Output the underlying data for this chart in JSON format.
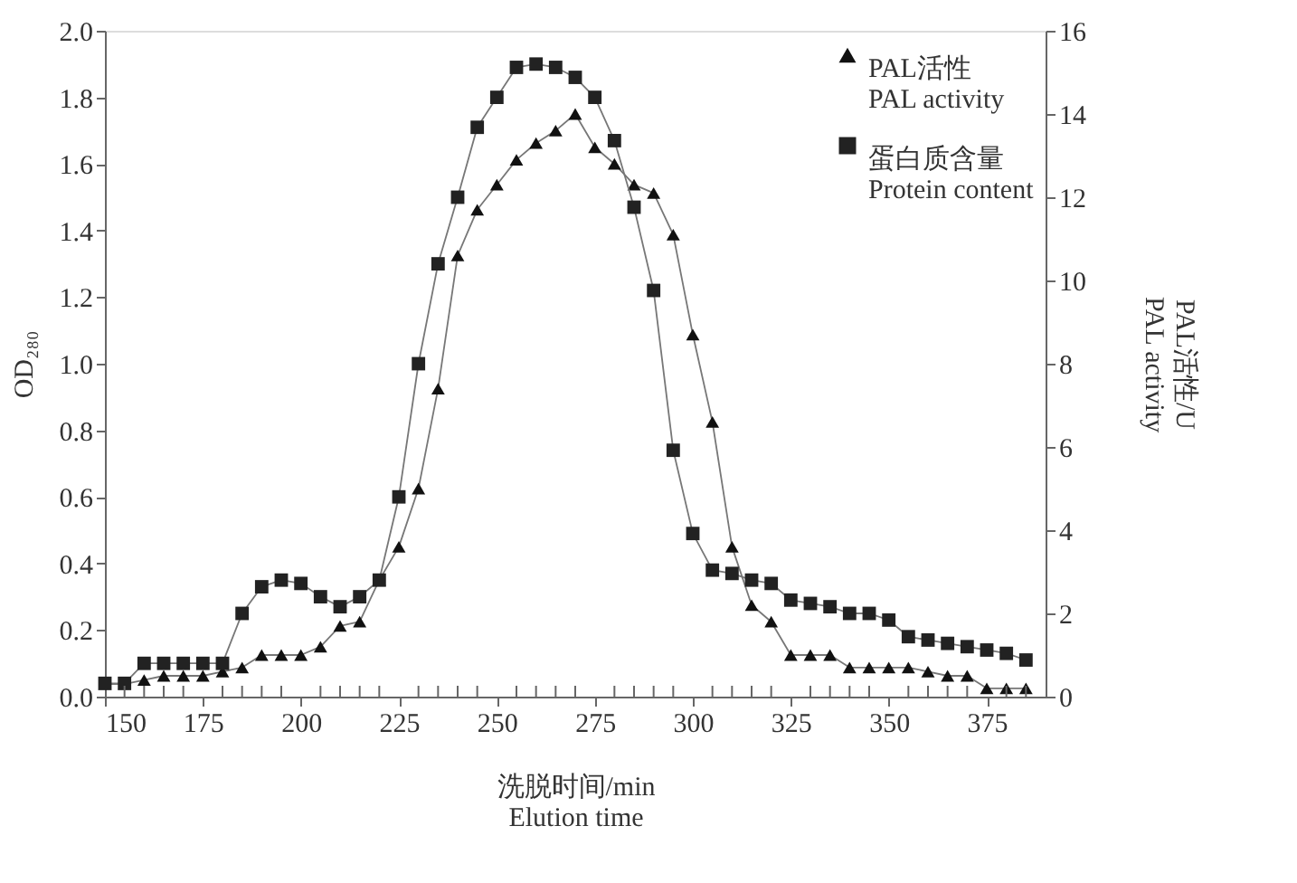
{
  "chart_data": {
    "type": "line",
    "xlabel": "洗脱时间/min\nElution time",
    "ylabel": "OD₂₈₀",
    "y2label": "PAL活性/U\nPAL activity",
    "x": [
      150,
      155,
      160,
      165,
      170,
      175,
      180,
      185,
      190,
      195,
      200,
      205,
      210,
      215,
      220,
      225,
      230,
      235,
      240,
      245,
      250,
      255,
      260,
      265,
      270,
      275,
      280,
      285,
      290,
      295,
      300,
      305,
      310,
      315,
      320,
      325,
      330,
      335,
      340,
      345,
      350,
      355,
      360,
      365,
      370,
      375,
      380,
      385
    ],
    "series": [
      {
        "name": "PAL活性\nPAL activity",
        "color": "#111111",
        "marker": "triangle",
        "axis": "y2",
        "values": [
          0.3,
          0.3,
          0.4,
          0.5,
          0.5,
          0.5,
          0.6,
          0.7,
          1.0,
          1.0,
          1.0,
          1.2,
          1.7,
          1.8,
          2.8,
          3.6,
          5.0,
          7.4,
          10.6,
          11.7,
          12.3,
          12.9,
          13.3,
          13.6,
          14.0,
          13.2,
          12.8,
          12.3,
          12.1,
          11.1,
          8.7,
          6.6,
          3.6,
          2.2,
          1.8,
          1.0,
          1.0,
          1.0,
          0.7,
          0.7,
          0.7,
          0.7,
          0.6,
          0.5,
          0.5,
          0.2,
          0.2,
          0.2
        ]
      },
      {
        "name": "蛋白质含量\nProtein content",
        "color": "#222222",
        "marker": "square",
        "values": [
          0.04,
          0.04,
          0.1,
          0.1,
          0.1,
          0.1,
          0.1,
          0.25,
          0.33,
          0.35,
          0.34,
          0.3,
          0.27,
          0.3,
          0.35,
          0.6,
          1.0,
          1.3,
          1.5,
          1.71,
          1.8,
          1.89,
          1.9,
          1.89,
          1.86,
          1.8,
          1.67,
          1.47,
          1.22,
          0.74,
          0.49,
          0.38,
          0.37,
          0.35,
          0.34,
          0.29,
          0.28,
          0.27,
          0.25,
          0.25,
          0.23,
          0.18,
          0.17,
          0.16,
          0.15,
          0.14,
          0.13,
          0.11
        ]
      }
    ],
    "xlim": [
      150,
      390
    ],
    "xticks": [
      150,
      {
        "value": 155,
        "label": null
      },
      {
        "value": 160,
        "label": null
      },
      {
        "value": 165,
        "label": null
      },
      {
        "value": 170,
        "label": null
      },
      175,
      {
        "value": 180,
        "label": null
      },
      {
        "value": 185,
        "label": null
      },
      {
        "value": 190,
        "label": null
      },
      {
        "value": 195,
        "label": null
      },
      200,
      {
        "value": 205,
        "label": null
      },
      {
        "value": 210,
        "label": null
      },
      {
        "value": 215,
        "label": null
      },
      {
        "value": 220,
        "label": null
      },
      225,
      {
        "value": 230,
        "label": null
      },
      {
        "value": 235,
        "label": null
      },
      {
        "value": 240,
        "label": null
      },
      {
        "value": 245,
        "label": null
      },
      250,
      {
        "value": 255,
        "label": null
      },
      {
        "value": 260,
        "label": null
      },
      {
        "value": 265,
        "label": null
      },
      {
        "value": 270,
        "label": null
      },
      275,
      {
        "value": 280,
        "label": null
      },
      {
        "value": 285,
        "label": null
      },
      {
        "value": 290,
        "label": null
      },
      {
        "value": 295,
        "label": null
      },
      300,
      {
        "value": 305,
        "label": null
      },
      {
        "value": 310,
        "label": null
      },
      {
        "value": 315,
        "label": null
      },
      {
        "value": 320,
        "label": null
      },
      325,
      {
        "value": 330,
        "label": null
      },
      {
        "value": 335,
        "label": null
      },
      {
        "value": 340,
        "label": null
      },
      {
        "value": 345,
        "label": null
      },
      350,
      {
        "value": 355,
        "label": null
      },
      {
        "value": 360,
        "label": null
      },
      {
        "value": 365,
        "label": null
      },
      {
        "value": 370,
        "label": null
      },
      375,
      {
        "value": 380,
        "label": null
      },
      {
        "value": 385,
        "label": null
      }
    ],
    "ylim": [
      0,
      2
    ],
    "yticks": [
      {
        "value": 0,
        "label": "0.0"
      },
      0.2,
      0.4,
      0.6,
      0.8,
      {
        "value": 1,
        "label": "1.0"
      },
      1.2,
      1.4,
      1.6,
      1.8,
      {
        "value": 2,
        "label": "2.0"
      }
    ],
    "y2lim": [
      0,
      16
    ],
    "y2ticks": [
      0,
      2,
      4,
      6,
      8,
      10,
      12,
      14,
      16
    ],
    "grid": false,
    "legend": "top right",
    "line_style": "solid"
  }
}
